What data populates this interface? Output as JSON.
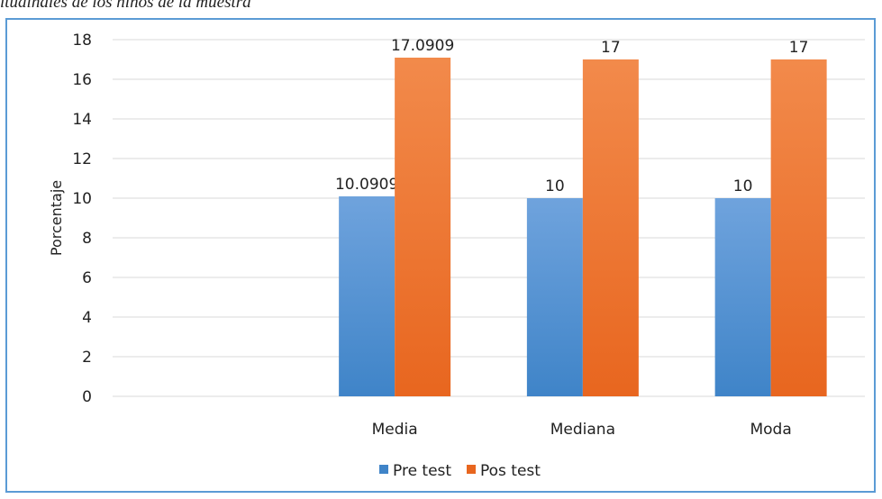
{
  "caption": "itudinales de los niños de la muestra",
  "colors": {
    "frame": "#5b9bd5",
    "pre_top": "#6fa3dd",
    "pre_bottom": "#3f84c8",
    "pos_top": "#f28a4b",
    "pos_bottom": "#e8661f",
    "grid": "#d9d9d9"
  },
  "chart_data": {
    "type": "bar",
    "categories": [
      "",
      "Media",
      "Mediana",
      "Moda"
    ],
    "series": [
      {
        "name": "Pre test",
        "values": [
          null,
          10.0909,
          10,
          10
        ],
        "labels": [
          "",
          "10.0909",
          "10",
          "10"
        ]
      },
      {
        "name": "Pos test",
        "values": [
          null,
          17.0909,
          17,
          17
        ],
        "labels": [
          "",
          "17.0909",
          "17",
          "17"
        ]
      }
    ],
    "title": "",
    "xlabel": "",
    "ylabel": "Porcentaje",
    "ylim": [
      0,
      18
    ],
    "yticks": [
      0,
      2,
      4,
      6,
      8,
      10,
      12,
      14,
      16,
      18
    ],
    "grid": true,
    "legend": "bottom"
  }
}
